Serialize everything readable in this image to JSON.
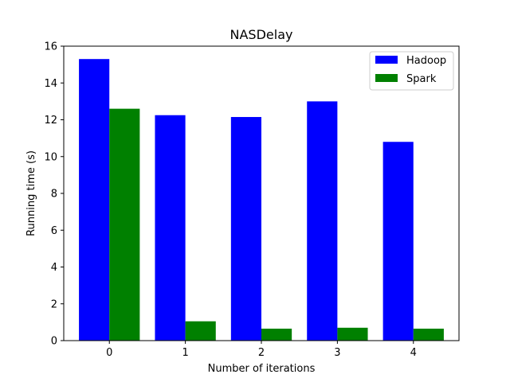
{
  "chart_data": {
    "type": "bar",
    "title": "NASDelay",
    "xlabel": "Number of iterations",
    "ylabel": "Running time (s)",
    "categories": [
      "0",
      "1",
      "2",
      "3",
      "4"
    ],
    "series": [
      {
        "name": "Hadoop",
        "color": "#0000ff",
        "values": [
          15.3,
          12.25,
          12.15,
          13.0,
          10.8
        ]
      },
      {
        "name": "Spark",
        "color": "#008000",
        "values": [
          12.6,
          1.05,
          0.65,
          0.7,
          0.65
        ]
      }
    ],
    "ylim": [
      0,
      16
    ],
    "yticks": [
      "0",
      "2",
      "4",
      "6",
      "8",
      "10",
      "12",
      "14",
      "16"
    ],
    "grid": false,
    "legend": "top-right"
  }
}
